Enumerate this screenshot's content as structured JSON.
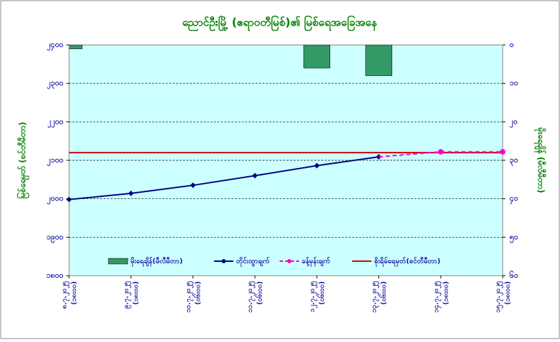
{
  "chart_data": {
    "type": "bar-line",
    "title": "ညောင်ဦးမြို့ (ဧရာဝတီမြစ်)၏ မြစ်ရေအခြေအနေ",
    "ylabel": "မြစ်ရေမှတ် (စင်တီမီတာ)",
    "y2label": "မိုးရေချိန် (မီလီမီတာ)",
    "categories": [
      [
        "၈.၇.၂၀၂၅",
        "(၁၈း၀၀)"
      ],
      [
        "၉.၇.၂၀၂၅",
        "(၁၈း၀၀)"
      ],
      [
        "၁၀.၇.၂၀၂၅",
        "(၀၆း၀၀)"
      ],
      [
        "၁၁.၇.၂၀၂၅",
        "(၀၆း၀၀)"
      ],
      [
        "၁၂.၇.၂၀၂၅",
        "(၀၆း၀၀)"
      ],
      [
        "၁၃.၇.၂၀၂၅",
        "(၀၆း၀၀)"
      ],
      [
        "၁၄.၇.၂၀၂၅",
        "(၁၈း၀၀)"
      ],
      [
        "၁၅.၇.၂၀၂၅",
        "(၁၈း၀၀)"
      ]
    ],
    "ylim": [
      1800,
      2400
    ],
    "yticks": [
      {
        "value": 1800,
        "label": "၁၈၀၀"
      },
      {
        "value": 1900,
        "label": "၁၉၀၀"
      },
      {
        "value": 2000,
        "label": "၂၀၀၀"
      },
      {
        "value": 2100,
        "label": "၂၁၀၀"
      },
      {
        "value": 2200,
        "label": "၂၂၀၀"
      },
      {
        "value": 2300,
        "label": "၂၃၀၀"
      },
      {
        "value": 2400,
        "label": "၂၄၀၀"
      }
    ],
    "y2lim": [
      60,
      0
    ],
    "y2ticks": [
      {
        "value": 0,
        "label": "၀"
      },
      {
        "value": 10,
        "label": "၁၀"
      },
      {
        "value": 20,
        "label": "၂၀"
      },
      {
        "value": 30,
        "label": "၃၀"
      },
      {
        "value": 40,
        "label": "၄၀"
      },
      {
        "value": 50,
        "label": "၅၀"
      },
      {
        "value": 60,
        "label": "၆၀"
      }
    ],
    "grid": true,
    "series": [
      {
        "name": "မိုးရေချိန်(မီလီမီတာ)",
        "type": "bar",
        "axis": "y2",
        "color": "#339966",
        "values": [
          1,
          0,
          0,
          0,
          6,
          8,
          0,
          0
        ]
      },
      {
        "name": "တိုင်းထွာချက်",
        "type": "line",
        "color": "#000080",
        "values": [
          1998,
          2014,
          2035,
          2060,
          2086,
          2109,
          null,
          null
        ]
      },
      {
        "name": "ခန့်မှန်းချက်",
        "type": "line",
        "dashed": true,
        "color": "#ff00cc",
        "values": [
          null,
          null,
          null,
          null,
          null,
          2109,
          2122,
          2122
        ]
      }
    ],
    "danger_level": {
      "name": "စိုးရိမ်ရေမှတ်(စင်တီမီတာ)",
      "value": 2120,
      "color": "#cc0000"
    }
  }
}
